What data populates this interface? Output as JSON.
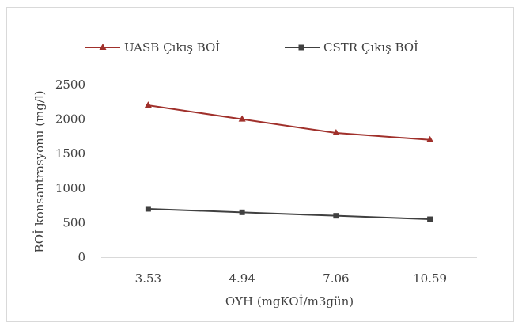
{
  "chart_data": {
    "type": "line",
    "categories": [
      "3.53",
      "4.94",
      "7.06",
      "10.59"
    ],
    "series": [
      {
        "name": "UASB Çıkış BOİ",
        "values": [
          2200,
          2000,
          1800,
          1700
        ],
        "color": "#a0302b",
        "marker": "triangle"
      },
      {
        "name": "CSTR Çıkış BOİ",
        "values": [
          700,
          650,
          600,
          550
        ],
        "color": "#404040",
        "marker": "square"
      }
    ],
    "xlabel": "OYH (mgKOİ/m3gün)",
    "ylabel": "BOİ konsantrasyonu (mg/l)",
    "ylim": [
      0,
      2500
    ],
    "yticks": [
      "0",
      "500",
      "1000",
      "1500",
      "2000",
      "2500"
    ],
    "grid": false,
    "legend": "top"
  }
}
